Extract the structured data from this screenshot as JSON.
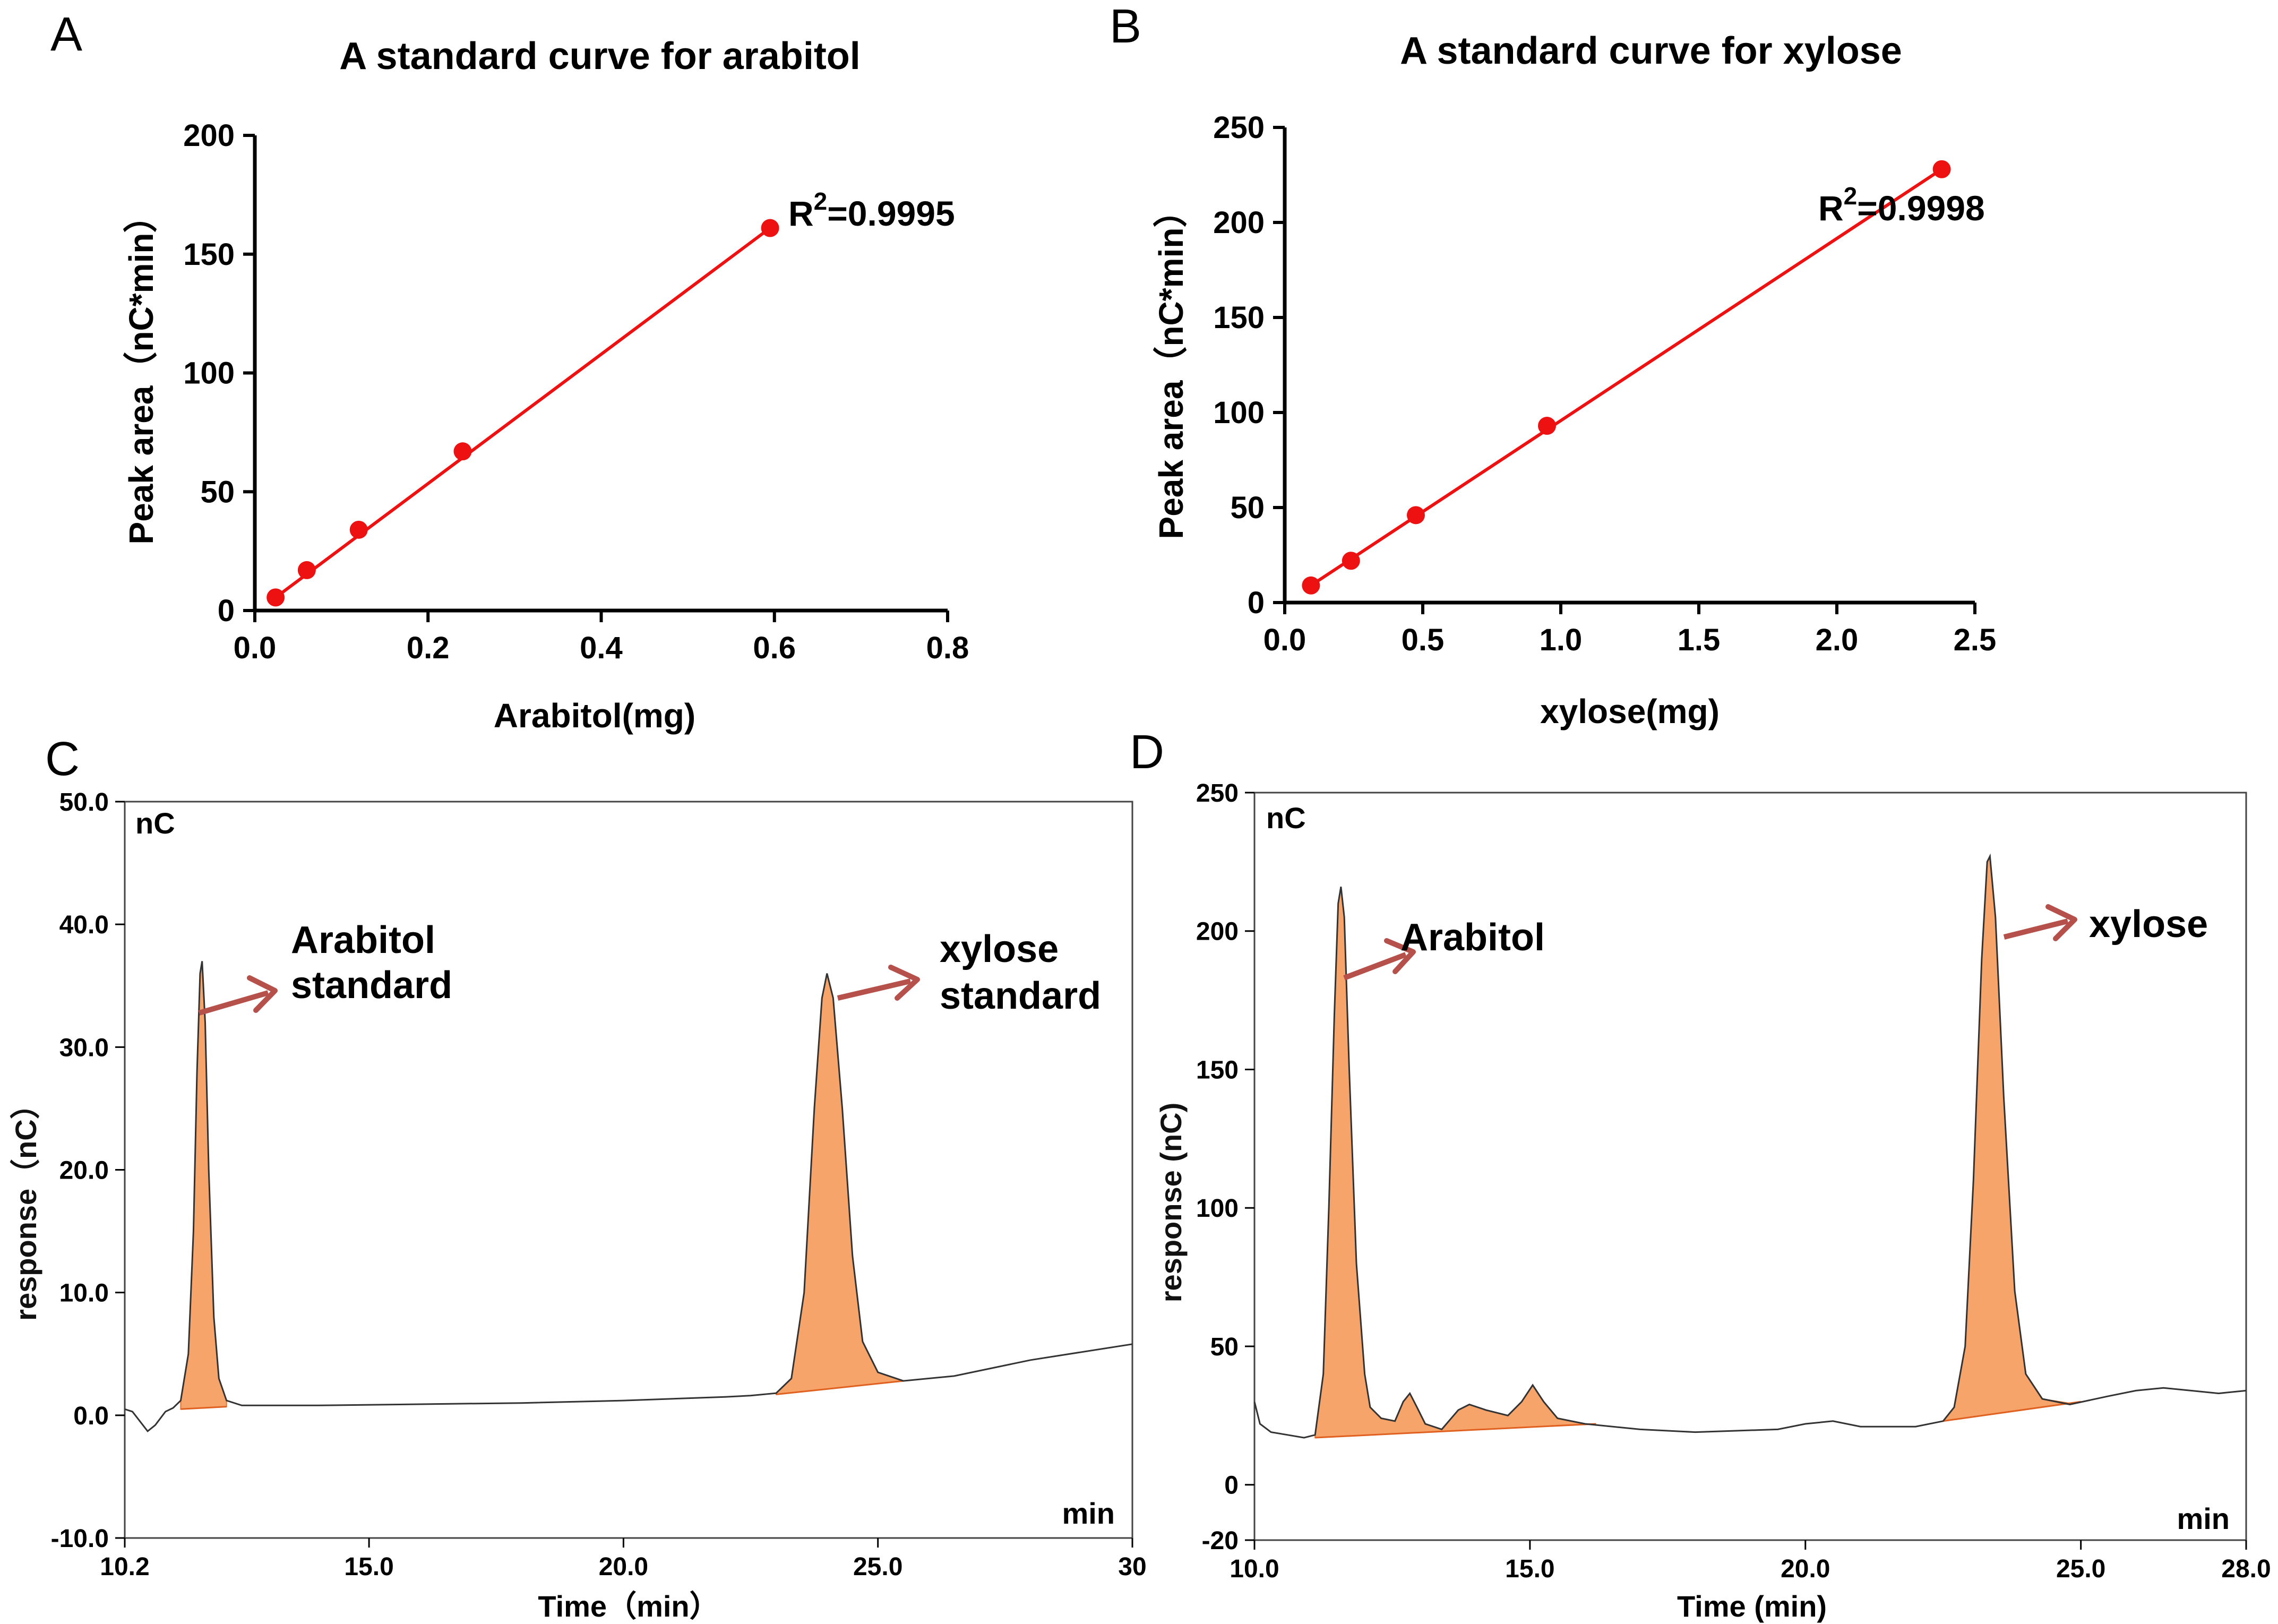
{
  "panels": {
    "A": "A",
    "B": "B",
    "C": "C",
    "D": "D"
  },
  "colors": {
    "curve": "#ee1111",
    "peak_fill": "#f6a46a",
    "arrow": "#b5504a",
    "trace": "#333333",
    "axis": "#000000"
  },
  "chart_data": [
    {
      "type": "scatter",
      "panel": "A",
      "title": "A standard curve for arabitol",
      "xlabel": "Arabitol(mg)",
      "ylabel": "Peak area（nC*min）",
      "xlim": [
        0.0,
        0.8
      ],
      "ylim": [
        0,
        200
      ],
      "xticks": [
        "0.0",
        "0.2",
        "0.4",
        "0.6",
        "0.8"
      ],
      "yticks": [
        "0",
        "50",
        "100",
        "150",
        "200"
      ],
      "x": [
        0.024,
        0.06,
        0.12,
        0.24,
        0.595
      ],
      "y": [
        5.5,
        17,
        34,
        67,
        161
      ],
      "fit_line": true,
      "r2_prefix": "R",
      "r2_exp": "2",
      "r2_value": "=0.9995"
    },
    {
      "type": "scatter",
      "panel": "B",
      "title": "A standard curve for xylose",
      "xlabel": "xylose(mg)",
      "ylabel": "Peak area（nC*min）",
      "xlim": [
        0.0,
        2.5
      ],
      "ylim": [
        0,
        250
      ],
      "xticks": [
        "0.0",
        "0.5",
        "1.0",
        "1.5",
        "2.0",
        "2.5"
      ],
      "yticks": [
        "0",
        "50",
        "100",
        "150",
        "200",
        "250"
      ],
      "x": [
        0.095,
        0.24,
        0.475,
        0.95,
        2.38
      ],
      "y": [
        9,
        22,
        46,
        93,
        228
      ],
      "fit_line": true,
      "r2_prefix": "R",
      "r2_exp": "2",
      "r2_value": "=0.9998"
    },
    {
      "type": "line",
      "panel": "C",
      "unit_label": "nC",
      "time_unit": "min",
      "xlabel": "Time（min）",
      "ylabel": "response（nC）",
      "xlim": [
        10.2,
        30
      ],
      "ylim": [
        -10,
        50
      ],
      "xticks": [
        {
          "v": 10.2,
          "label": "10.2"
        },
        {
          "v": 15,
          "label": "15.0"
        },
        {
          "v": 20,
          "label": "20.0"
        },
        {
          "v": 25,
          "label": "25.0"
        },
        {
          "v": 30,
          "label": "30"
        }
      ],
      "yticks": [
        {
          "v": -10,
          "label": "-10.0"
        },
        {
          "v": 0,
          "label": "0.0"
        },
        {
          "v": 10,
          "label": "10.0"
        },
        {
          "v": 20,
          "label": "20.0"
        },
        {
          "v": 30,
          "label": "30.0"
        },
        {
          "v": 40,
          "label": "40.0"
        },
        {
          "v": 50,
          "label": "50.0"
        }
      ],
      "trace": [
        [
          10.2,
          0.5
        ],
        [
          10.35,
          0.3
        ],
        [
          10.5,
          -0.5
        ],
        [
          10.65,
          -1.3
        ],
        [
          10.8,
          -0.8
        ],
        [
          11.0,
          0.3
        ],
        [
          11.15,
          0.6
        ],
        [
          11.3,
          1.2
        ],
        [
          11.45,
          5
        ],
        [
          11.55,
          15
        ],
        [
          11.62,
          28
        ],
        [
          11.68,
          36
        ],
        [
          11.72,
          37
        ],
        [
          11.78,
          32
        ],
        [
          11.85,
          20
        ],
        [
          11.95,
          8
        ],
        [
          12.05,
          3
        ],
        [
          12.2,
          1.2
        ],
        [
          12.5,
          0.8
        ],
        [
          14,
          0.8
        ],
        [
          16,
          0.9
        ],
        [
          18,
          1.0
        ],
        [
          20,
          1.2
        ],
        [
          22,
          1.5
        ],
        [
          22.5,
          1.6
        ],
        [
          23.0,
          1.8
        ],
        [
          23.3,
          3
        ],
        [
          23.55,
          10
        ],
        [
          23.75,
          25
        ],
        [
          23.9,
          34
        ],
        [
          24.0,
          36
        ],
        [
          24.12,
          34
        ],
        [
          24.3,
          25
        ],
        [
          24.5,
          13
        ],
        [
          24.7,
          6
        ],
        [
          25.0,
          3.5
        ],
        [
          25.5,
          2.8
        ],
        [
          26.5,
          3.2
        ],
        [
          28,
          4.5
        ],
        [
          30,
          5.8
        ]
      ],
      "peaks": [
        {
          "name": "Arabitol",
          "start": 11.3,
          "end": 12.2,
          "b0": 0.5,
          "b1": 0.7
        },
        {
          "name": "xylose",
          "start": 23.0,
          "end": 25.5,
          "b0": 1.7,
          "b1": 2.8
        }
      ],
      "labels": [
        {
          "line1": "Arabitol",
          "line2": "standard"
        },
        {
          "line1": "xylose",
          "line2": "standard"
        }
      ]
    },
    {
      "type": "line",
      "panel": "D",
      "unit_label": "nC",
      "time_unit": "min",
      "xlabel": "Time (min)",
      "ylabel": "response (nC)",
      "xlim": [
        10,
        28
      ],
      "ylim": [
        -20,
        250
      ],
      "xticks": [
        {
          "v": 10,
          "label": "10.0"
        },
        {
          "v": 15,
          "label": "15.0"
        },
        {
          "v": 20,
          "label": "20.0"
        },
        {
          "v": 25,
          "label": "25.0"
        },
        {
          "v": 28,
          "label": "28.0"
        }
      ],
      "yticks": [
        {
          "v": -20,
          "label": "-20"
        },
        {
          "v": 0,
          "label": "0"
        },
        {
          "v": 50,
          "label": "50"
        },
        {
          "v": 100,
          "label": "100"
        },
        {
          "v": 150,
          "label": "150"
        },
        {
          "v": 200,
          "label": "200"
        },
        {
          "v": 250,
          "label": "250"
        }
      ],
      "trace": [
        [
          10.0,
          30
        ],
        [
          10.1,
          22
        ],
        [
          10.3,
          19
        ],
        [
          10.6,
          18
        ],
        [
          10.9,
          17
        ],
        [
          11.1,
          18
        ],
        [
          11.25,
          40
        ],
        [
          11.35,
          100
        ],
        [
          11.45,
          170
        ],
        [
          11.52,
          210
        ],
        [
          11.57,
          216
        ],
        [
          11.63,
          205
        ],
        [
          11.72,
          150
        ],
        [
          11.85,
          80
        ],
        [
          12.0,
          40
        ],
        [
          12.1,
          28
        ],
        [
          12.3,
          24
        ],
        [
          12.55,
          23
        ],
        [
          12.7,
          30
        ],
        [
          12.82,
          33
        ],
        [
          12.95,
          28
        ],
        [
          13.1,
          22
        ],
        [
          13.4,
          20
        ],
        [
          13.7,
          27
        ],
        [
          13.9,
          29
        ],
        [
          14.2,
          27
        ],
        [
          14.6,
          25
        ],
        [
          14.85,
          30
        ],
        [
          15.05,
          36
        ],
        [
          15.25,
          30
        ],
        [
          15.5,
          24
        ],
        [
          16.0,
          22
        ],
        [
          17,
          20
        ],
        [
          18,
          19
        ],
        [
          19.5,
          20
        ],
        [
          20,
          22
        ],
        [
          20.5,
          23
        ],
        [
          21.0,
          21
        ],
        [
          22.0,
          21
        ],
        [
          22.5,
          23
        ],
        [
          22.7,
          28
        ],
        [
          22.9,
          50
        ],
        [
          23.05,
          110
        ],
        [
          23.2,
          190
        ],
        [
          23.3,
          225
        ],
        [
          23.35,
          227
        ],
        [
          23.45,
          205
        ],
        [
          23.6,
          140
        ],
        [
          23.8,
          70
        ],
        [
          24.0,
          40
        ],
        [
          24.3,
          31
        ],
        [
          24.8,
          29
        ],
        [
          25.5,
          32
        ],
        [
          26.0,
          34
        ],
        [
          26.5,
          35
        ],
        [
          27.0,
          34
        ],
        [
          27.5,
          33
        ],
        [
          28.0,
          34
        ]
      ],
      "peaks": [
        {
          "name": "Arabitol region",
          "start": 11.1,
          "end": 16.2,
          "b0": 17,
          "b1": 22
        },
        {
          "name": "xylose",
          "start": 22.5,
          "end": 25.0,
          "b0": 23,
          "b1": 30
        }
      ],
      "labels": [
        {
          "line1": "Arabitol",
          "line2": ""
        },
        {
          "line1": "xylose",
          "line2": ""
        }
      ]
    }
  ]
}
